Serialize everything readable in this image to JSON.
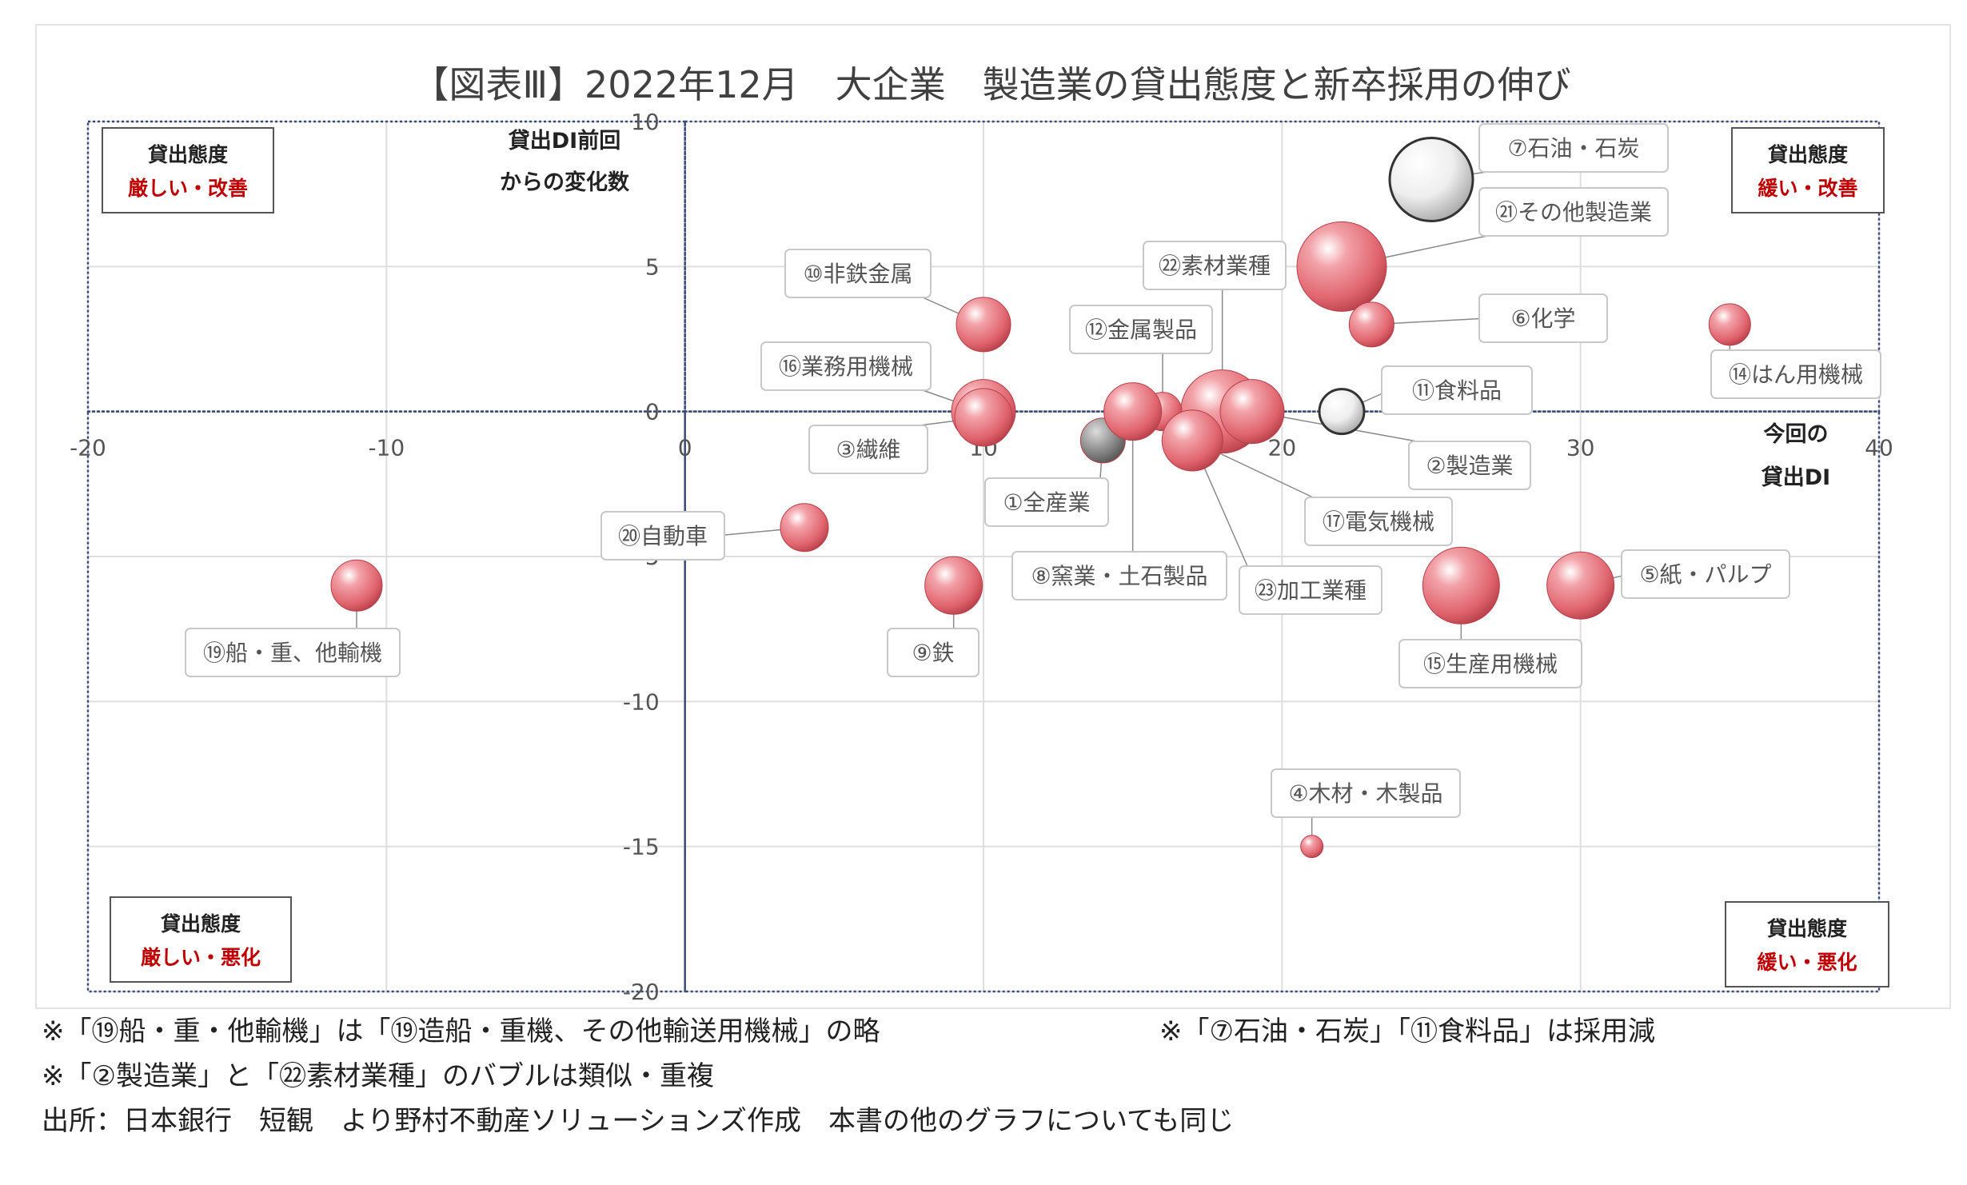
{
  "chart_data": {
    "type": "scatter",
    "subtype": "bubble",
    "title": "【図表Ⅲ】2022年12月　大企業　製造業の貸出態度と新卒採用の伸び",
    "xlabel_lines": [
      "今回の",
      "貸出DI"
    ],
    "ylabel_lines": [
      "貸出DI前回",
      "からの変化数"
    ],
    "xlim": [
      -20,
      40
    ],
    "ylim": [
      -20,
      10
    ],
    "xticks": [
      -20,
      -10,
      0,
      10,
      20,
      30,
      40
    ],
    "yticks": [
      10,
      5,
      0,
      -5,
      -10,
      -15,
      -20
    ],
    "grid": true,
    "colors": {
      "increase": "#e0646e",
      "decrease": "#e4e4e4",
      "total": "#8a8a8a"
    },
    "quadrants": [
      {
        "line1": "貸出態度",
        "line2": "厳しい・改善",
        "position": "top-left"
      },
      {
        "line1": "貸出態度",
        "line2": "緩い・改善",
        "position": "top-right"
      },
      {
        "line1": "貸出態度",
        "line2": "厳しい・悪化",
        "position": "bottom-left"
      },
      {
        "line1": "貸出態度",
        "line2": "緩い・悪化",
        "position": "bottom-right"
      }
    ],
    "points": [
      {
        "label": "⑦石油・石炭",
        "x": 25,
        "y": 8,
        "size": 2.6,
        "kind": "decrease"
      },
      {
        "label": "㉑その他製造業",
        "x": 22,
        "y": 5,
        "size": 2.8,
        "kind": "increase"
      },
      {
        "label": "⑥化学",
        "x": 23,
        "y": 3,
        "size": 1.4,
        "kind": "increase"
      },
      {
        "label": "⑭はん用機械",
        "x": 35,
        "y": 3,
        "size": 1.3,
        "kind": "increase"
      },
      {
        "label": "⑩非鉄金属",
        "x": 10,
        "y": 3,
        "size": 1.7,
        "kind": "increase"
      },
      {
        "label": "㉒素材業種",
        "x": 18,
        "y": 0,
        "size": 2.6,
        "kind": "increase"
      },
      {
        "label": "⑫金属製品",
        "x": 16,
        "y": 0,
        "size": 1.2,
        "kind": "increase"
      },
      {
        "label": "⑯業務用機械",
        "x": 10,
        "y": 0,
        "size": 2.0,
        "kind": "increase"
      },
      {
        "label": "⑪食料品",
        "x": 22,
        "y": 0,
        "size": 1.4,
        "kind": "decrease"
      },
      {
        "label": "③繊維",
        "x": 10,
        "y": -0.2,
        "size": 1.8,
        "kind": "increase"
      },
      {
        "label": "②製造業",
        "x": 19,
        "y": 0,
        "size": 2.0,
        "kind": "increase"
      },
      {
        "label": "①全産業",
        "x": 14,
        "y": -1,
        "size": 1.4,
        "kind": "total"
      },
      {
        "label": "⑰電気機械",
        "x": 17,
        "y": -1,
        "size": 1.9,
        "kind": "increase"
      },
      {
        "label": "⑧窯業・土石製品",
        "x": 15,
        "y": 0,
        "size": 1.8,
        "kind": "increase"
      },
      {
        "label": "㉓加工業種",
        "x": 17,
        "y": -1,
        "size": 1.9,
        "kind": "increase"
      },
      {
        "label": "⑳自動車",
        "x": 4,
        "y": -4,
        "size": 1.5,
        "kind": "increase"
      },
      {
        "label": "⑲船・重、他輸機",
        "x": -11,
        "y": -6,
        "size": 1.6,
        "kind": "increase"
      },
      {
        "label": "⑨鉄",
        "x": 9,
        "y": -6,
        "size": 1.8,
        "kind": "increase"
      },
      {
        "label": "⑮生産用機械",
        "x": 26,
        "y": -6,
        "size": 2.4,
        "kind": "increase"
      },
      {
        "label": "⑤紙・パルプ",
        "x": 30,
        "y": -6,
        "size": 2.1,
        "kind": "increase"
      },
      {
        "label": "④木材・木製品",
        "x": 21,
        "y": -15,
        "size": 0.7,
        "kind": "increase"
      }
    ]
  },
  "notes": {
    "note1": "※「⑲船・重・他輸機」は「⑲造船・重機、その他輸送用機械」の略",
    "note2": "※「⑦石油・石炭」「⑪食料品」は採用減",
    "note3": "※「②製造業」と「㉒素材業種」のバブルは類似・重複",
    "source": "出所：日本銀行　短観　より野村不動産ソリューションズ作成　本書の他のグラフについても同じ"
  }
}
